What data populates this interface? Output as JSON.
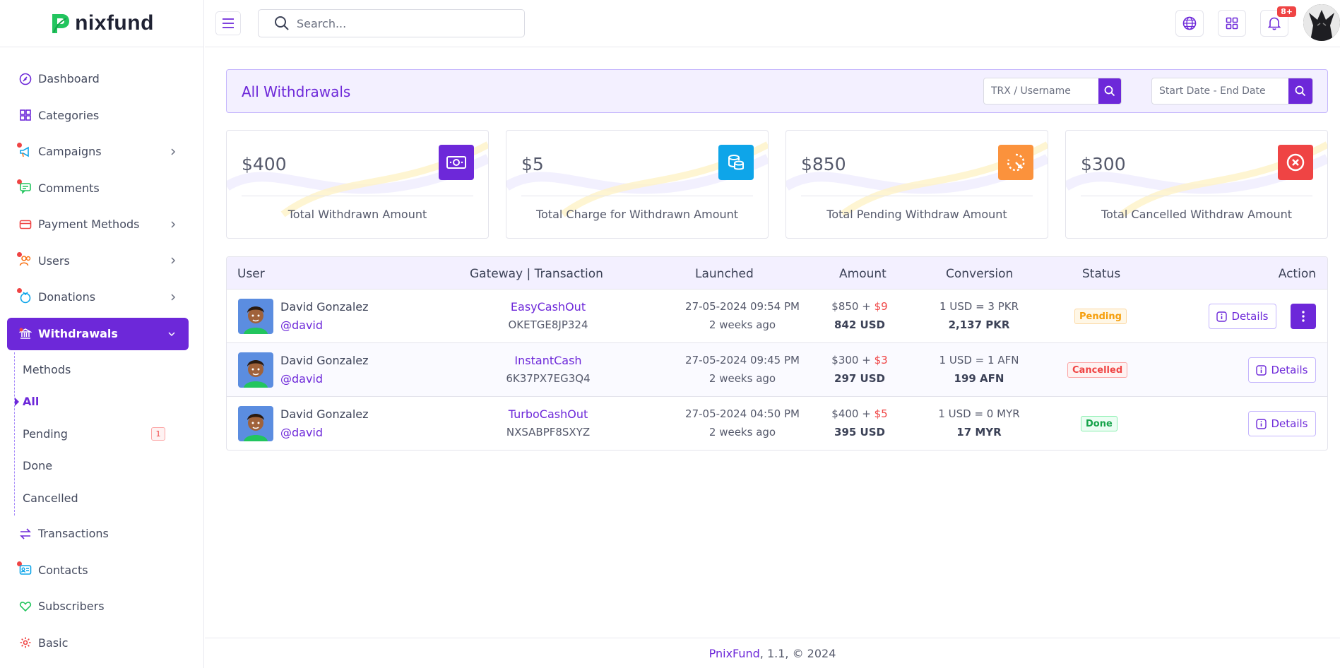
{
  "app": {
    "logo_text": "nixfund"
  },
  "search": {
    "placeholder": "Search..."
  },
  "topbar": {
    "notification_count": "8+",
    "icons": [
      "menu-icon",
      "search-icon",
      "globe-icon",
      "apps-grid-icon",
      "bell-icon"
    ]
  },
  "sidebar": {
    "items": [
      {
        "label": "Dashboard",
        "icon": "dashboard-icon",
        "color": "#6d28d9"
      },
      {
        "label": "Categories",
        "icon": "grid-icon",
        "color": "#6d28d9"
      },
      {
        "label": "Campaigns",
        "icon": "megaphone-icon",
        "color": "#0ea5e9",
        "has_dot": true,
        "has_chevron": true
      },
      {
        "label": "Comments",
        "icon": "comment-icon",
        "color": "#22c55e",
        "has_dot": true
      },
      {
        "label": "Payment Methods",
        "icon": "card-icon",
        "color": "#ef4444",
        "has_chevron": true
      },
      {
        "label": "Users",
        "icon": "users-icon",
        "color": "#f97316",
        "has_dot": true,
        "has_chevron": true
      },
      {
        "label": "Donations",
        "icon": "donation-icon",
        "color": "#0ea5e9",
        "has_dot": true,
        "has_chevron": true
      },
      {
        "label": "Withdrawals",
        "icon": "bank-icon",
        "active": true,
        "has_dot": true
      },
      {
        "label": "Transactions",
        "icon": "arrows-icon",
        "color": "#6d28d9"
      },
      {
        "label": "Contacts",
        "icon": "contact-icon",
        "color": "#0ea5e9",
        "has_dot": true
      },
      {
        "label": "Subscribers",
        "icon": "heart-icon",
        "color": "#22c55e"
      },
      {
        "label": "Basic",
        "icon": "gear-icon",
        "color": "#ef4444"
      }
    ],
    "withdrawals_sub": [
      {
        "label": "Methods"
      },
      {
        "label": "All",
        "current": true
      },
      {
        "label": "Pending",
        "badge": "1"
      },
      {
        "label": "Done"
      },
      {
        "label": "Cancelled"
      }
    ]
  },
  "page": {
    "title": "All Withdrawals",
    "filter_trx_placeholder": "TRX / Username",
    "filter_date_placeholder": "Start Date - End Date"
  },
  "cards": [
    {
      "amount": "$400",
      "label": "Total Withdrawn Amount",
      "color": "#6d28d9",
      "icon": "money-icon"
    },
    {
      "amount": "$5",
      "label": "Total Charge for Withdrawn Amount",
      "color": "#0ea5e9",
      "icon": "coins-icon"
    },
    {
      "amount": "$850",
      "label": "Total Pending Withdraw Amount",
      "color": "#fb923c",
      "icon": "spinner-icon"
    },
    {
      "amount": "$300",
      "label": "Total Cancelled Withdraw Amount",
      "color": "#ef4444",
      "icon": "cancel-icon"
    }
  ],
  "table": {
    "headers": [
      "User",
      "Gateway | Transaction",
      "Launched",
      "Amount",
      "Conversion",
      "Status",
      "Action"
    ],
    "rows": [
      {
        "name": "David Gonzalez",
        "handle": "@david",
        "gateway": "EasyCashOut",
        "trx": "OKETGE8JP324",
        "date": "27-05-2024 09:54 PM",
        "ago": "2 weeks ago",
        "amount": "$850",
        "charge": "$9",
        "net": "842 USD",
        "rate": "1 USD = 3 PKR",
        "converted": "2,137 PKR",
        "status": "Pending",
        "action": "Details"
      },
      {
        "name": "David Gonzalez",
        "handle": "@david",
        "gateway": "InstantCash",
        "trx": "6K37PX7EG3Q4",
        "date": "27-05-2024 09:45 PM",
        "ago": "2 weeks ago",
        "amount": "$300",
        "charge": "$3",
        "net": "297 USD",
        "rate": "1 USD = 1 AFN",
        "converted": "199 AFN",
        "status": "Cancelled",
        "action": "Details"
      },
      {
        "name": "David Gonzalez",
        "handle": "@david",
        "gateway": "TurboCashOut",
        "trx": "NXSABPF8SXYZ",
        "date": "27-05-2024 04:50 PM",
        "ago": "2 weeks ago",
        "amount": "$400",
        "charge": "$5",
        "net": "395 USD",
        "rate": "1 USD = 0 MYR",
        "converted": "17 MYR",
        "status": "Done",
        "action": "Details"
      }
    ]
  },
  "footer": {
    "brand": "PnixFund",
    "rest": ", 1.1, © 2024"
  }
}
